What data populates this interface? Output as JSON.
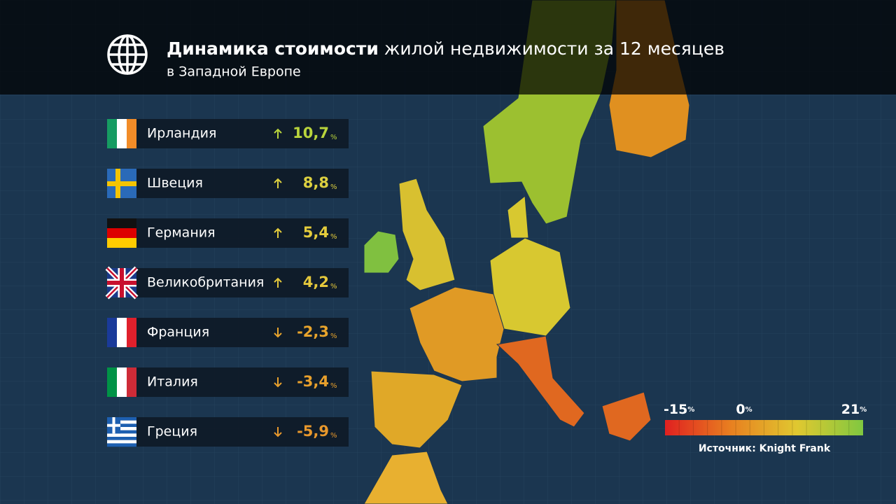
{
  "header": {
    "title_bold": "Динамика стоимости",
    "title_rest": "жилой недвижимости за 12 месяцев",
    "subtitle": "в Западной Европе"
  },
  "rows": [
    {
      "country": "Ирландия",
      "value": "10,7",
      "unit": "%",
      "color": "#b9d43c"
    },
    {
      "country": "Швеция",
      "value": "8,8",
      "unit": "%",
      "color": "#dcd040"
    },
    {
      "country": "Германия",
      "value": "5,4",
      "unit": "%",
      "color": "#e4cc3c"
    },
    {
      "country": "Великобритания",
      "value": "4,2",
      "unit": "%",
      "color": "#e4c83c"
    },
    {
      "country": "Франция",
      "value": "-2,3",
      "unit": "%",
      "color": "#e8a42c"
    },
    {
      "country": "Италия",
      "value": "-3,4",
      "unit": "%",
      "color": "#e8a02c"
    },
    {
      "country": "Греция",
      "value": "-5,9",
      "unit": "%",
      "color": "#e8982c"
    }
  ],
  "legend": {
    "min": "-15",
    "mid": "0",
    "max": "21",
    "unit": "%",
    "colors": [
      "#e02020",
      "#e88020",
      "#e0c830",
      "#80c840"
    ]
  },
  "source": "Источник: Knight Frank"
}
